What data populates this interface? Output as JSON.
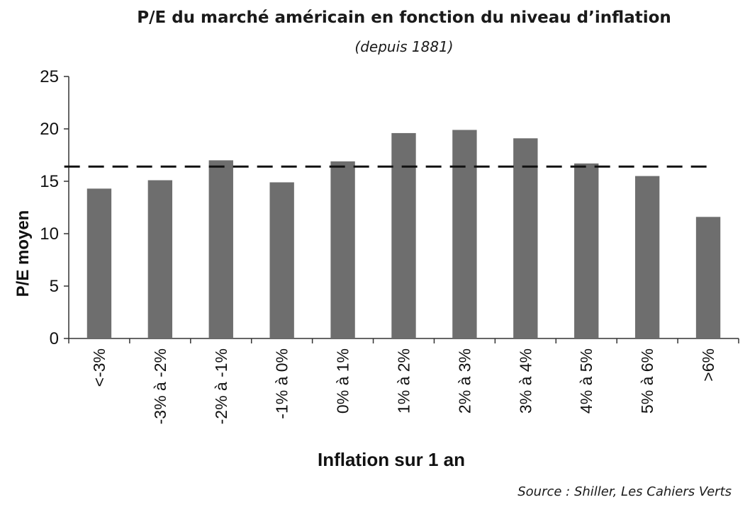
{
  "chart_data": {
    "type": "bar",
    "title": "P/E du marché américain en fonction du niveau d’inflation",
    "subtitle": "(depuis 1881)",
    "xlabel": "Inflation sur 1 an",
    "ylabel": "P/E moyen",
    "ylim": [
      0,
      25
    ],
    "yticks": [
      0,
      5,
      10,
      15,
      20,
      25
    ],
    "categories": [
      "<-3%",
      "-3% à -2%",
      "-2% à -1%",
      "-1% à 0%",
      "0% à 1%",
      "1% à 2%",
      "2% à 3%",
      "3% à 4%",
      "4% à 5%",
      "5% à 6%",
      ">6%"
    ],
    "values": [
      14.3,
      15.1,
      17.0,
      14.9,
      16.9,
      19.6,
      19.9,
      19.1,
      16.7,
      15.5,
      11.6
    ],
    "reference_line": {
      "value": 16.4,
      "style": "dashed"
    },
    "bar_color": "#6e6e6e",
    "grid": false,
    "source": "Source : Shiller, Les Cahiers Verts"
  }
}
